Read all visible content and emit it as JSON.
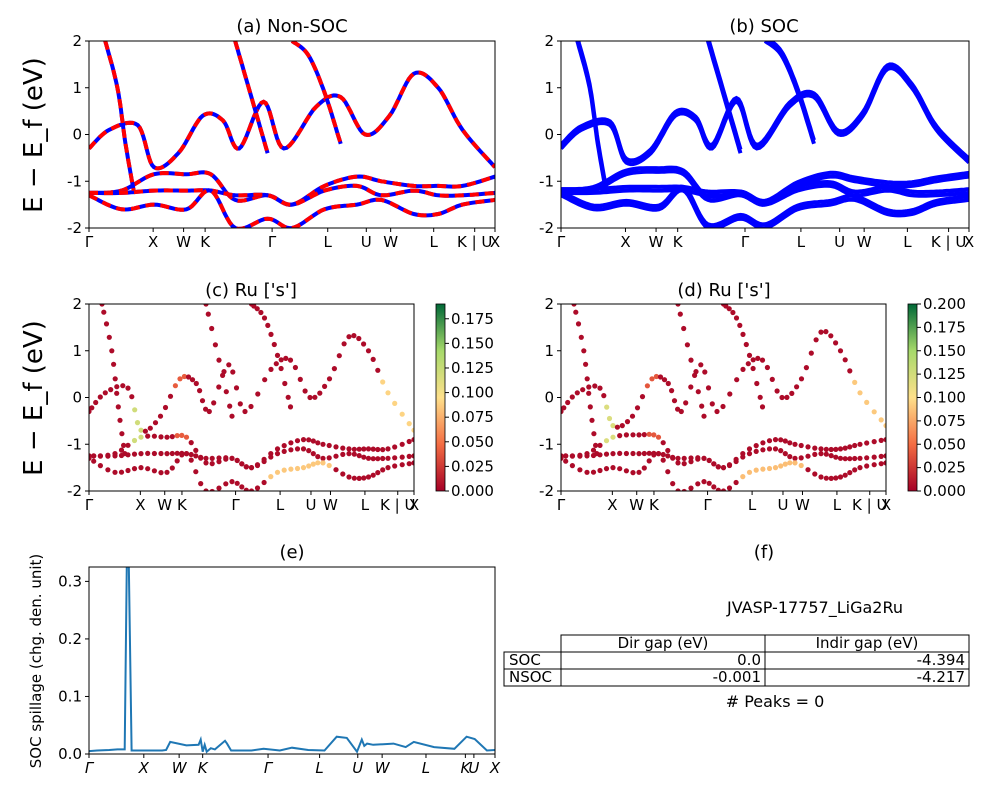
{
  "panel_titles": {
    "a": "(a) Non-SOC",
    "b": "(b) SOC",
    "c": "(c)  Ru ['s']",
    "d": "(d) Ru ['s']",
    "e": "(e)",
    "f": "(f)"
  },
  "band_ylabel": "E − E_f (eV)",
  "spillage_ylabel": "SOC spillage (chg. den. unit)",
  "kpath_labels": [
    "Γ",
    "X",
    "W",
    "K",
    "Γ",
    "L",
    "U",
    "W",
    "L",
    "K | U",
    "X"
  ],
  "spillage_labels": [
    "Γ",
    "X",
    "W",
    "K",
    "Γ",
    "L",
    "U",
    "W",
    "L",
    "K",
    "U",
    "X"
  ],
  "colors": {
    "nsoc": "#ff0000",
    "soc": "#0000ff",
    "spillage": "#1f77b4"
  },
  "chart_data": [
    {
      "id": "a",
      "type": "line",
      "title": "(a) Non-SOC",
      "ylabel": "E − E_f (eV)",
      "ylim": [
        -2,
        2
      ],
      "yticks": [
        -2,
        -1,
        0,
        1,
        2
      ],
      "xticklabels": [
        "Γ",
        "X",
        "W",
        "K",
        "Γ",
        "L",
        "U",
        "W",
        "L",
        "K | U",
        "X"
      ],
      "series": [
        {
          "name": "",
          "x": [
            0,
            0.05,
            0.12,
            0.16,
            0.22,
            0.28,
            0.33,
            0.37,
            0.43,
            0.48,
            0.56,
            0.62,
            0.68,
            0.74,
            0.8,
            0.86,
            0.92,
            1.0
          ],
          "y": [
            -0.3,
            0.1,
            0.2,
            -0.7,
            -0.4,
            0.4,
            0.3,
            -0.3,
            0.7,
            -0.3,
            0.6,
            0.8,
            0.0,
            0.4,
            1.3,
            1.0,
            0.1,
            -0.7
          ]
        },
        {
          "name": "",
          "x": [
            0,
            0.08,
            0.16,
            0.24,
            0.3,
            0.36,
            0.44,
            0.5,
            0.58,
            0.66,
            0.72,
            0.8,
            0.86,
            0.92,
            1.0
          ],
          "y": [
            -1.25,
            -1.2,
            -0.85,
            -0.85,
            -0.85,
            -1.4,
            -1.3,
            -1.5,
            -1.1,
            -0.9,
            -1.0,
            -1.1,
            -1.1,
            -1.1,
            -0.9
          ]
        },
        {
          "name": "",
          "x": [
            0,
            0.08,
            0.16,
            0.24,
            0.3,
            0.36,
            0.44,
            0.5,
            0.58,
            0.66,
            0.72,
            0.8,
            0.86,
            0.92,
            1.0
          ],
          "y": [
            -1.25,
            -1.25,
            -1.2,
            -1.2,
            -1.2,
            -1.3,
            -1.3,
            -1.5,
            -1.2,
            -1.1,
            -1.3,
            -1.2,
            -1.3,
            -1.3,
            -1.25
          ]
        },
        {
          "name": "",
          "x": [
            0,
            0.08,
            0.16,
            0.24,
            0.3,
            0.36,
            0.44,
            0.5,
            0.58,
            0.66,
            0.72,
            0.8,
            0.86,
            0.92,
            1.0
          ],
          "y": [
            -1.3,
            -1.6,
            -1.5,
            -1.6,
            -1.2,
            -2.0,
            -1.8,
            -2.0,
            -1.6,
            -1.5,
            -1.4,
            -1.7,
            -1.7,
            -1.5,
            -1.4
          ]
        },
        {
          "name": "",
          "x": [
            0.04,
            0.07,
            0.09,
            0.11
          ],
          "y": [
            2.0,
            1.0,
            -0.2,
            -1.2
          ]
        },
        {
          "name": "",
          "x": [
            0.36,
            0.4,
            0.44
          ],
          "y": [
            2.0,
            0.8,
            -0.4
          ]
        },
        {
          "name": "",
          "x": [
            0.5,
            0.54,
            0.58,
            0.62
          ],
          "y": [
            2.0,
            1.7,
            0.9,
            -0.2
          ]
        }
      ]
    },
    {
      "id": "b",
      "type": "line",
      "title": "(b) SOC",
      "ylabel": "",
      "ylim": [
        -2,
        2
      ],
      "yticks": [
        -2,
        -1,
        0,
        1,
        2
      ],
      "xticklabels": [
        "Γ",
        "X",
        "W",
        "K",
        "Γ",
        "L",
        "U",
        "W",
        "L",
        "K | U",
        "X"
      ],
      "series": [
        {
          "name": "",
          "x": [
            0,
            0.05,
            0.12,
            0.16,
            0.22,
            0.28,
            0.33,
            0.37,
            0.43,
            0.48,
            0.56,
            0.62,
            0.68,
            0.74,
            0.8,
            0.86,
            0.92,
            1.0
          ],
          "y": [
            -0.3,
            0.1,
            0.2,
            -0.6,
            -0.4,
            0.4,
            0.3,
            -0.3,
            0.7,
            -0.3,
            0.6,
            0.8,
            0.0,
            0.4,
            1.4,
            1.0,
            0.1,
            -0.6
          ]
        },
        {
          "name": "",
          "x": [
            0,
            0.08,
            0.16,
            0.24,
            0.3,
            0.36,
            0.44,
            0.5,
            0.58,
            0.66,
            0.72,
            0.8,
            0.86,
            0.92,
            1.0
          ],
          "y": [
            -1.25,
            -1.2,
            -0.85,
            -0.8,
            -0.85,
            -1.4,
            -1.3,
            -1.5,
            -1.1,
            -0.9,
            -1.0,
            -1.1,
            -1.1,
            -1.0,
            -0.9
          ]
        },
        {
          "name": "",
          "x": [
            0,
            0.08,
            0.16,
            0.24,
            0.3,
            0.36,
            0.44,
            0.5,
            0.58,
            0.66,
            0.72,
            0.8,
            0.86,
            0.92,
            1.0
          ],
          "y": [
            -1.25,
            -1.25,
            -1.2,
            -1.2,
            -1.2,
            -1.3,
            -1.3,
            -1.5,
            -1.2,
            -1.1,
            -1.3,
            -1.2,
            -1.3,
            -1.3,
            -1.25
          ]
        },
        {
          "name": "",
          "x": [
            0,
            0.08,
            0.16,
            0.24,
            0.3,
            0.36,
            0.44,
            0.5,
            0.58,
            0.66,
            0.72,
            0.8,
            0.86,
            0.92,
            1.0
          ],
          "y": [
            -1.3,
            -1.6,
            -1.5,
            -1.6,
            -1.2,
            -2.0,
            -1.8,
            -2.0,
            -1.6,
            -1.5,
            -1.4,
            -1.7,
            -1.7,
            -1.5,
            -1.4
          ]
        },
        {
          "name": "",
          "x": [
            0.04,
            0.07,
            0.09,
            0.11
          ],
          "y": [
            2.0,
            1.0,
            -0.2,
            -1.2
          ]
        },
        {
          "name": "",
          "x": [
            0.36,
            0.4,
            0.44
          ],
          "y": [
            2.0,
            0.8,
            -0.4
          ]
        },
        {
          "name": "",
          "x": [
            0.5,
            0.54,
            0.58,
            0.62
          ],
          "y": [
            2.0,
            1.7,
            0.9,
            -0.2
          ]
        }
      ]
    },
    {
      "id": "c",
      "type": "scatter",
      "title": "(c)  Ru ['s']",
      "ylabel": "E − E_f (eV)",
      "ylim": [
        -2,
        2
      ],
      "yticks": [
        -2,
        -1,
        0,
        1,
        2
      ],
      "xticklabels": [
        "Γ",
        "X",
        "W",
        "K",
        "Γ",
        "L",
        "U",
        "W",
        "L",
        "K | U",
        "X"
      ],
      "colorbar": {
        "min": 0.0,
        "max": 0.19,
        "ticks": [
          "0.000",
          "0.025",
          "0.050",
          "0.075",
          "0.100",
          "0.125",
          "0.150",
          "0.175"
        ]
      },
      "weight_highlights": [
        {
          "x": [
            0.14,
            0.17
          ],
          "weight": 0.12
        },
        {
          "x": [
            0.26,
            0.3
          ],
          "weight": 0.04
        }
      ]
    },
    {
      "id": "d",
      "type": "scatter",
      "title": "(d) Ru ['s']",
      "ylabel": "",
      "ylim": [
        -2,
        2
      ],
      "yticks": [
        -2,
        -1,
        0,
        1,
        2
      ],
      "xticklabels": [
        "Γ",
        "X",
        "W",
        "K",
        "Γ",
        "L",
        "U",
        "W",
        "L",
        "K | U",
        "X"
      ],
      "colorbar": {
        "min": 0.0,
        "max": 0.2,
        "ticks": [
          "0.000",
          "0.025",
          "0.050",
          "0.075",
          "0.100",
          "0.125",
          "0.150",
          "0.175",
          "0.200"
        ]
      },
      "weight_highlights": [
        {
          "x": [
            0.14,
            0.17
          ],
          "weight": 0.12
        },
        {
          "x": [
            0.26,
            0.3
          ],
          "weight": 0.04
        }
      ]
    },
    {
      "id": "e",
      "type": "line",
      "title": "(e)",
      "ylabel": "SOC spillage (chg. den. unit)",
      "ylim": [
        0,
        0.325
      ],
      "yticks": [
        0.0,
        0.1,
        0.2,
        0.3
      ],
      "yticklabels": [
        "0.0",
        "0.1",
        "0.2",
        "0.3"
      ],
      "xticklabels": [
        "Γ",
        "X",
        "W",
        "K",
        "Γ",
        "L",
        "U",
        "W",
        "L",
        "K",
        "U",
        "X"
      ],
      "x": [
        0,
        0.02,
        0.05,
        0.07,
        0.088,
        0.093,
        0.098,
        0.105,
        0.12,
        0.18,
        0.19,
        0.2,
        0.24,
        0.27,
        0.275,
        0.28,
        0.285,
        0.29,
        0.3,
        0.31,
        0.335,
        0.34,
        0.35,
        0.37,
        0.4,
        0.43,
        0.47,
        0.5,
        0.54,
        0.58,
        0.61,
        0.635,
        0.66,
        0.672,
        0.678,
        0.685,
        0.7,
        0.75,
        0.78,
        0.8,
        0.85,
        0.9,
        0.93,
        0.95,
        0.98,
        1.0
      ],
      "y": [
        0.005,
        0.006,
        0.007,
        0.008,
        0.008,
        0.33,
        0.33,
        0.006,
        0.006,
        0.006,
        0.007,
        0.021,
        0.015,
        0.016,
        0.025,
        0.004,
        0.016,
        0.004,
        0.01,
        0.008,
        0.023,
        0.018,
        0.006,
        0.006,
        0.006,
        0.009,
        0.006,
        0.011,
        0.007,
        0.006,
        0.03,
        0.028,
        0.004,
        0.025,
        0.014,
        0.018,
        0.016,
        0.018,
        0.012,
        0.021,
        0.012,
        0.009,
        0.03,
        0.026,
        0.006,
        0.007
      ]
    },
    {
      "id": "f",
      "type": "table",
      "title": "(f)",
      "caption": "JVASP-17757_LiGa2Ru",
      "columns": [
        "",
        "Dir gap (eV)",
        "Indir gap (eV)"
      ],
      "rows": [
        [
          "SOC",
          "0.0",
          "-4.394"
        ],
        [
          "NSOC",
          "-0.001",
          "-4.217"
        ]
      ],
      "footer": "# Peaks = 0"
    }
  ]
}
